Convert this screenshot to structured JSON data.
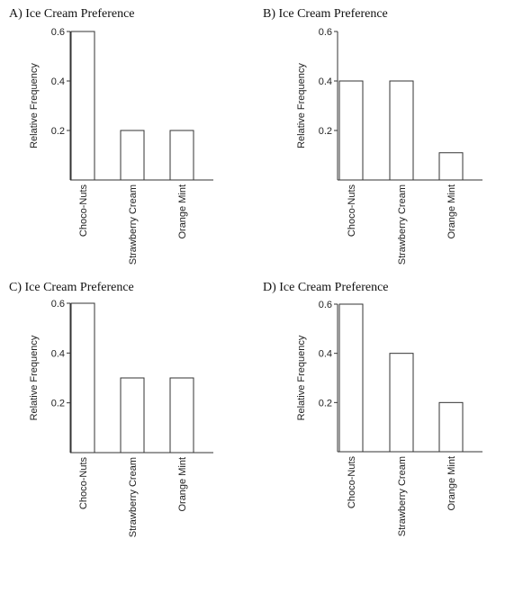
{
  "chart_data": [
    {
      "type": "bar",
      "title": "A) Ice Cream Preference",
      "ylabel": "Relative Frequency",
      "xlabel": "",
      "categories": [
        "Choco-Nuts",
        "Strawberry Cream",
        "Orange Mint"
      ],
      "values": [
        0.6,
        0.2,
        0.2
      ],
      "yticks": [
        0.2,
        0.4,
        0.6
      ],
      "ytick_labels": [
        "0.2",
        "0.4",
        "0.6"
      ],
      "ylim": [
        0,
        0.6
      ],
      "grid": false,
      "legend": "none"
    },
    {
      "type": "bar",
      "title": "B) Ice Cream Preference",
      "ylabel": "Relative Frequency",
      "xlabel": "",
      "categories": [
        "Choco-Nuts",
        "Strawberry Cream",
        "Orange Mint"
      ],
      "values": [
        0.4,
        0.4,
        0.11
      ],
      "yticks": [
        0.2,
        0.4,
        0.6
      ],
      "ytick_labels": [
        "0.2",
        "0.4",
        "0.6"
      ],
      "ylim": [
        0,
        0.6
      ],
      "grid": false,
      "legend": "none"
    },
    {
      "type": "bar",
      "title": "C) Ice Cream Preference",
      "ylabel": "Relative Frequency",
      "xlabel": "",
      "categories": [
        "Choco-Nuts",
        "Strawberry Cream",
        "Orange Mint"
      ],
      "values": [
        0.6,
        0.3,
        0.3
      ],
      "yticks": [
        0.2,
        0.4,
        0.6
      ],
      "ytick_labels": [
        "0.2",
        "0.4",
        "0.6"
      ],
      "ylim": [
        0,
        0.6
      ],
      "grid": false,
      "legend": "none"
    },
    {
      "type": "bar",
      "title": "D) Ice Cream Preference",
      "ylabel": "Relative Frequency",
      "xlabel": "",
      "categories": [
        "Choco-Nuts",
        "Strawberry Cream",
        "Orange Mint"
      ],
      "values": [
        0.6,
        0.4,
        0.2
      ],
      "yticks": [
        0.2,
        0.4,
        0.6
      ],
      "ytick_labels": [
        "0.2",
        "0.4",
        "0.6"
      ],
      "ylim": [
        0,
        0.6
      ],
      "grid": false,
      "legend": "none"
    }
  ],
  "colors": {
    "bar_fill": "#ffffff",
    "bar_stroke": "#333333",
    "axis": "#333333",
    "text": "#222222"
  }
}
